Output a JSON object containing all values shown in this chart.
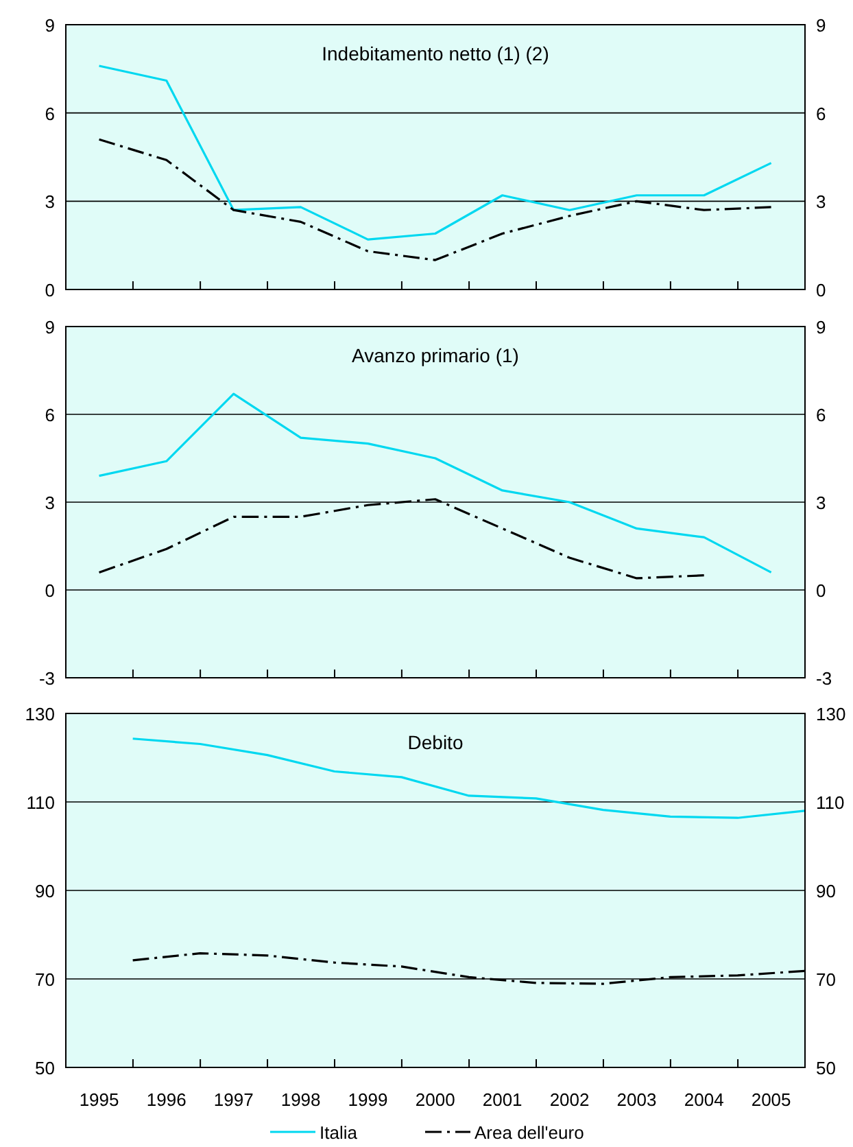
{
  "chart_data": [
    {
      "type": "line",
      "title": "Indebitamento netto (1) (2)",
      "x": [
        "1995-07-01",
        "1996-07-01",
        "1997-07-01",
        "1998-07-01",
        "1999-07-01",
        "2000-07-01",
        "2001-07-01",
        "2002-07-01",
        "2003-07-01",
        "2004-07-01",
        "2005-07-01"
      ],
      "series": [
        {
          "color": "#00d8f0",
          "line_style": "solid",
          "values": [
            7.6,
            7.1,
            2.7,
            2.8,
            1.7,
            1.9,
            3.2,
            2.7,
            3.2,
            3.2,
            4.3
          ]
        },
        {
          "color": "#000000",
          "line_style": "dashed",
          "values": [
            5.1,
            4.4,
            2.7,
            2.3,
            1.3,
            1.0,
            1.9,
            2.5,
            3.0,
            2.7,
            2.8
          ]
        }
      ],
      "xlim": [
        "1995-01-01",
        "2006-01-01"
      ],
      "xticks": [
        {
          "value": "1996-01-01",
          "label": null
        },
        {
          "value": "1997-01-01",
          "label": null
        },
        {
          "value": "1998-01-01",
          "label": null
        },
        {
          "value": "1999-01-01",
          "label": null
        },
        {
          "value": "2000-01-01",
          "label": null
        },
        {
          "value": "2001-01-01",
          "label": null
        },
        {
          "value": "2002-01-01",
          "label": null
        },
        {
          "value": "2003-01-01",
          "label": null
        },
        {
          "value": "2004-01-01",
          "label": null
        },
        {
          "value": "2005-01-01",
          "label": null
        }
      ],
      "ylim": [
        0,
        9
      ],
      "yticks": [
        0,
        3,
        6,
        9
      ],
      "y2lim": [
        0,
        9
      ],
      "y2ticks": [
        0,
        3,
        6,
        9
      ],
      "grid": "y",
      "tick_labels": "y"
    },
    {
      "type": "line",
      "title": "Avanzo primario (1)",
      "x": [
        "1995-07-01",
        "1996-07-01",
        "1997-07-01",
        "1998-07-01",
        "1999-07-01",
        "2000-07-01",
        "2001-07-01",
        "2002-07-01",
        "2003-07-01",
        "2004-07-01",
        "2005-07-01"
      ],
      "series": [
        {
          "color": "#00d8f0",
          "line_style": "solid",
          "values": [
            3.9,
            4.4,
            6.7,
            5.2,
            5.0,
            4.5,
            3.4,
            3.0,
            2.1,
            1.8,
            0.6
          ]
        },
        {
          "color": "#000000",
          "line_style": "dashed",
          "values": [
            0.6,
            1.4,
            2.5,
            2.5,
            2.9,
            3.1,
            2.1,
            1.1,
            0.4,
            0.5,
            null
          ]
        }
      ],
      "xlim": [
        "1995-01-01",
        "2006-01-01"
      ],
      "xticks": [
        {
          "value": "1996-01-01",
          "label": null
        },
        {
          "value": "1997-01-01",
          "label": null
        },
        {
          "value": "1998-01-01",
          "label": null
        },
        {
          "value": "1999-01-01",
          "label": null
        },
        {
          "value": "2000-01-01",
          "label": null
        },
        {
          "value": "2001-01-01",
          "label": null
        },
        {
          "value": "2002-01-01",
          "label": null
        },
        {
          "value": "2003-01-01",
          "label": null
        },
        {
          "value": "2004-01-01",
          "label": null
        },
        {
          "value": "2005-01-01",
          "label": null
        }
      ],
      "ylim": [
        -3,
        9
      ],
      "yticks": [
        -3,
        0,
        3,
        6,
        9
      ],
      "y2lim": [
        -3,
        9
      ],
      "y2ticks": [
        -3,
        0,
        3,
        6,
        9
      ],
      "grid": "y",
      "tick_labels": "y"
    },
    {
      "type": "line",
      "title": "Debito",
      "x": [
        "1995-12-31",
        "1996-12-31",
        "1997-12-31",
        "1998-12-31",
        "1999-12-31",
        "2000-12-31",
        "2001-12-31",
        "2002-12-31",
        "2003-12-31",
        "2004-12-31",
        "2005-12-31"
      ],
      "series": [
        {
          "name": "Italia",
          "color": "#00d8f0",
          "line_style": "solid",
          "values": [
            124.3,
            123.1,
            120.6,
            116.9,
            115.6,
            111.4,
            110.8,
            108.2,
            106.7,
            106.4,
            108.0
          ]
        },
        {
          "name": "Area dell'euro",
          "color": "#000000",
          "line_style": "dashed",
          "values": [
            74.2,
            75.8,
            75.3,
            73.7,
            72.8,
            70.4,
            69.1,
            68.9,
            70.4,
            70.8,
            71.8
          ]
        }
      ],
      "xlim": [
        "1995-01-01",
        "2006-01-01"
      ],
      "xticks": [
        {
          "value": "1995-07-01",
          "label": "1995"
        },
        {
          "value": "1996-01-01",
          "label": null
        },
        {
          "value": "1996-07-01",
          "label": "1996"
        },
        {
          "value": "1997-01-01",
          "label": null
        },
        {
          "value": "1997-07-01",
          "label": "1997"
        },
        {
          "value": "1998-01-01",
          "label": null
        },
        {
          "value": "1998-07-01",
          "label": "1998"
        },
        {
          "value": "1999-01-01",
          "label": null
        },
        {
          "value": "1999-07-01",
          "label": "1999"
        },
        {
          "value": "2000-01-01",
          "label": null
        },
        {
          "value": "2000-07-01",
          "label": "2000"
        },
        {
          "value": "2001-01-01",
          "label": null
        },
        {
          "value": "2001-07-01",
          "label": "2001"
        },
        {
          "value": "2002-01-01",
          "label": null
        },
        {
          "value": "2002-07-01",
          "label": "2002"
        },
        {
          "value": "2003-01-01",
          "label": null
        },
        {
          "value": "2003-07-01",
          "label": "2003"
        },
        {
          "value": "2004-01-01",
          "label": null
        },
        {
          "value": "2004-07-01",
          "label": "2004"
        },
        {
          "value": "2005-01-01",
          "label": null
        },
        {
          "value": "2005-07-01",
          "label": "2005"
        }
      ],
      "ylim": [
        50,
        130
      ],
      "yticks": [
        50,
        70,
        90,
        110,
        130
      ],
      "y2lim": [
        50,
        130
      ],
      "y2ticks": [
        50,
        70,
        90,
        110,
        130
      ],
      "grid": "y",
      "legend": "bottom"
    }
  ]
}
